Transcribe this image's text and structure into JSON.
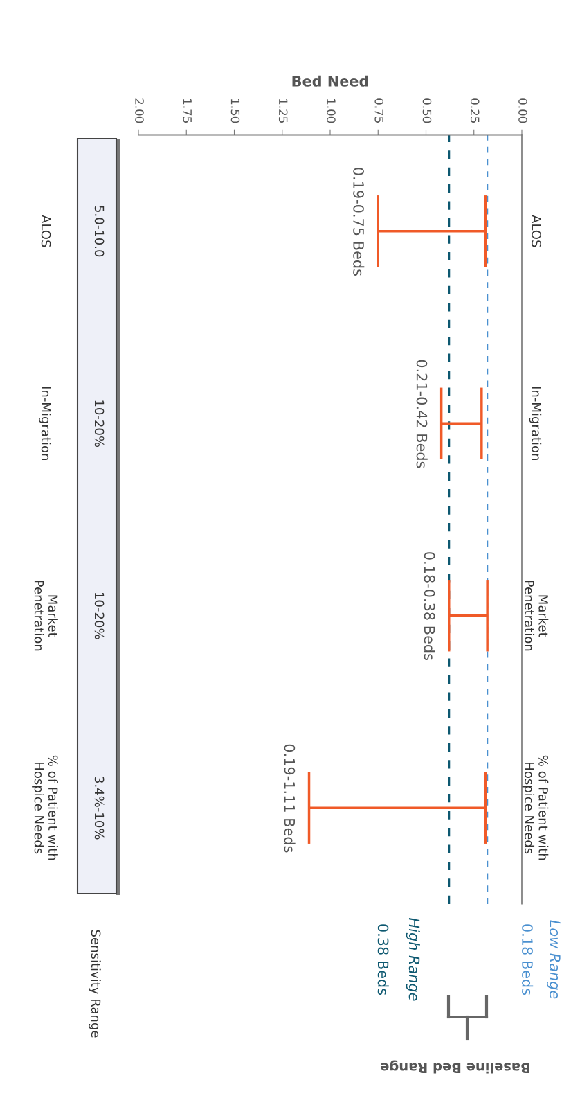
{
  "chart_data": {
    "type": "bar",
    "orientation": "horizontal",
    "xlabel": "Bed Need",
    "categories": [
      "ALOS",
      "In-Migration",
      "Market\nPenetration",
      "% of Patient with\nHospice Needs"
    ],
    "base": [
      0.19,
      0.21,
      0.18,
      0.19
    ],
    "values": [
      0.56,
      0.21,
      0.2,
      0.92
    ],
    "value_labels": [
      "0.19-0.75 Beds",
      "0.21-0.42 Beds",
      "0.18-0.38 Beds",
      "0.19-1.11 Beds"
    ],
    "color": "#f05a28",
    "xlim": [
      2,
      0
    ],
    "xticks": [
      {
        "value": 2,
        "label": "2.00"
      },
      {
        "value": 1.75,
        "label": "1.75"
      },
      {
        "value": 1.5,
        "label": "1.50"
      },
      {
        "value": 1.25,
        "label": "1.25"
      },
      {
        "value": 1,
        "label": "1.00"
      },
      {
        "value": 0.75,
        "label": "0.75"
      },
      {
        "value": 0.5,
        "label": "0.50"
      },
      {
        "value": 0.25,
        "label": "0.25"
      },
      {
        "value": 0,
        "label": "0.00"
      }
    ],
    "ref_lines": [
      {
        "axis": "x",
        "value": 0.38,
        "label": "0.38 Beds",
        "color": "#0d5870",
        "line_style": "dashed"
      },
      {
        "axis": "x",
        "value": 0.18,
        "label": "0.18 Beds",
        "color": "#4a90d0",
        "line_style": "dashed"
      }
    ],
    "annotations": [
      "Sensitivity Range",
      "Baseline Bed Range",
      "High Range",
      "Low Range",
      "5.0-10.0",
      "10-20%",
      "10-20%",
      "3.4%-10%"
    ]
  }
}
